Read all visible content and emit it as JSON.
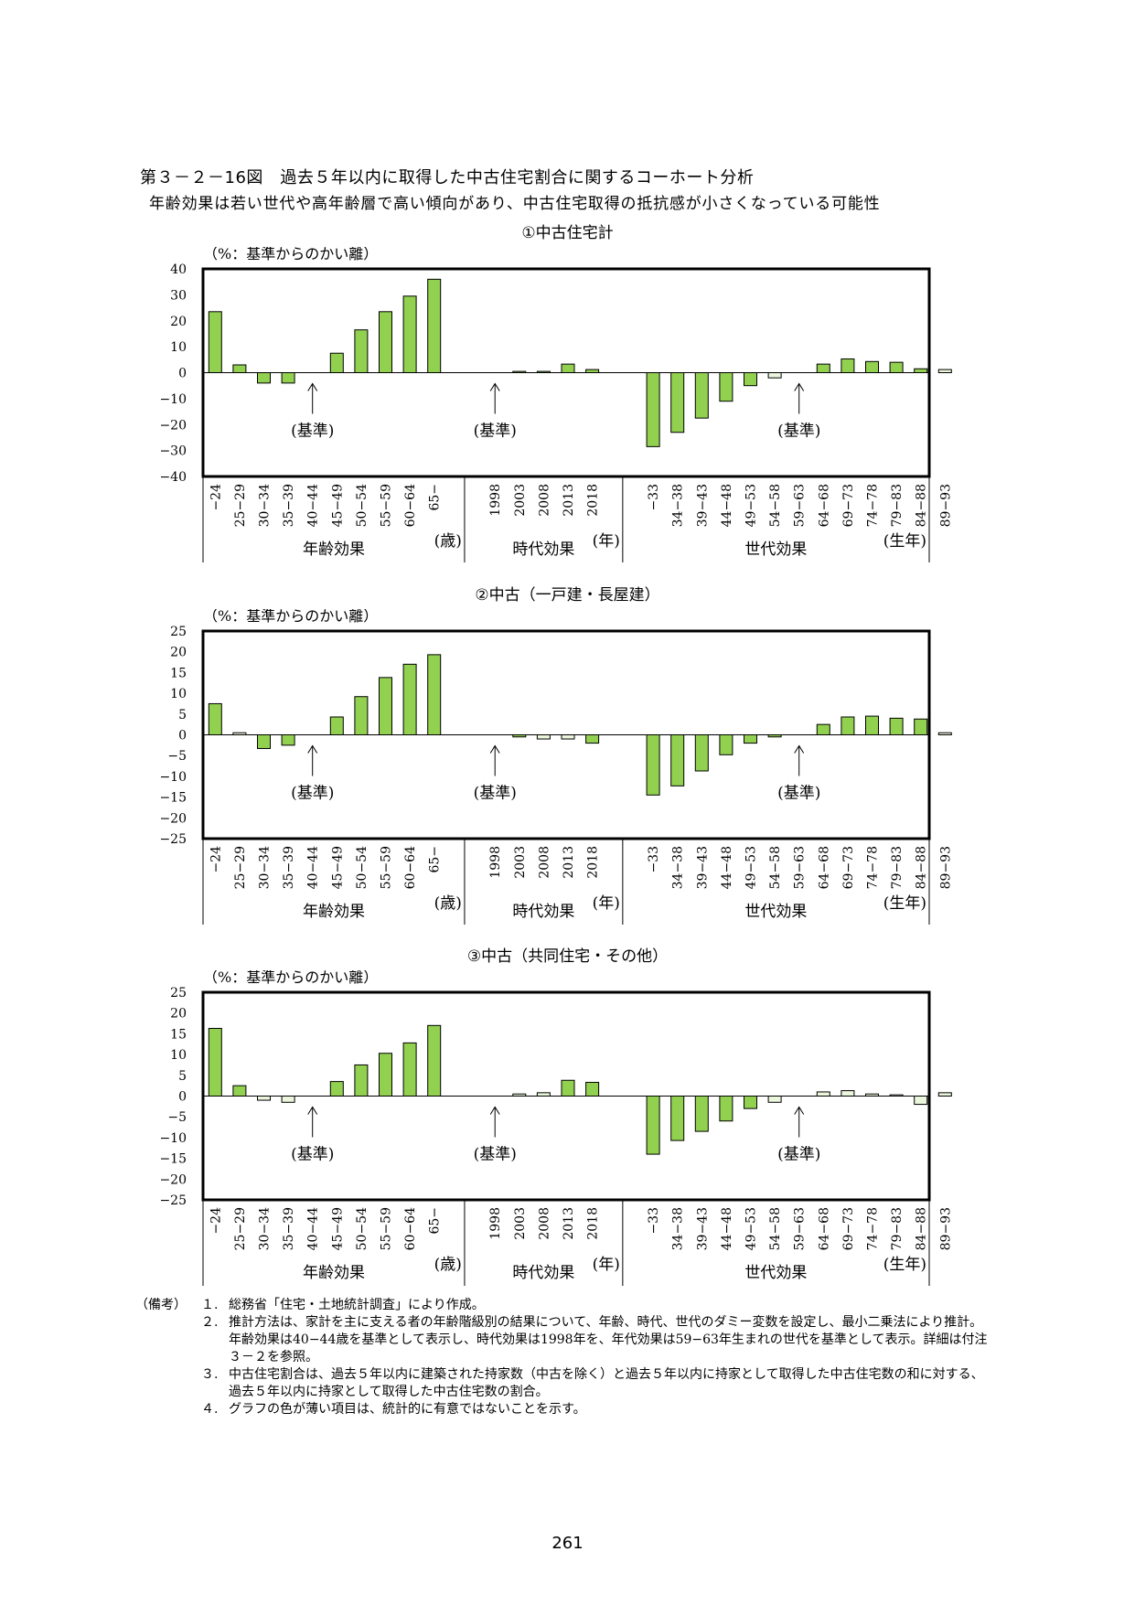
{
  "figure": {
    "title": "第３－２－16図　過去５年以内に取得した中古住宅割合に関するコーホート分析",
    "subtitle": "年齢効果は若い世代や高年齢層で高い傾向があり、中古住宅取得の抵抗感が小さくなっている可能性"
  },
  "shared": {
    "unit_label": "（%：基準からのかい離）",
    "reference_label": "(基準)",
    "groups": [
      "年齢効果",
      "時代効果",
      "世代効果"
    ],
    "group_units": [
      "(歳)",
      "(年)",
      "(生年)"
    ]
  },
  "colors": {
    "significant": "#92D050",
    "not_significant": "#EBF6DC",
    "stroke": "#000000"
  },
  "chart_data": [
    {
      "type": "bar",
      "title": "①中古住宅計",
      "ylabel": "（%：基準からのかい離）",
      "ylim": [
        -40,
        40
      ],
      "yticks": [
        40,
        30,
        20,
        10,
        0,
        -10,
        -20,
        -30,
        -40
      ],
      "ytick_labels": [
        "40",
        "30",
        "20",
        "10",
        "0",
        "−10",
        "−20",
        "−30",
        "−40"
      ],
      "categories": [
        "−24",
        "25−29",
        "30−34",
        "35−39",
        "40−44",
        "45−49",
        "50−54",
        "55−59",
        "60−64",
        "65−",
        "1998",
        "2003",
        "2008",
        "2013",
        "2018",
        "−33",
        "34−38",
        "39−43",
        "44−48",
        "49−53",
        "54−58",
        "59−63",
        "64−68",
        "69−73",
        "74−78",
        "79−83",
        "84−88",
        "89−93"
      ],
      "values": [
        23.5,
        3.0,
        -4.0,
        -4.0,
        0,
        7.5,
        16.5,
        23.5,
        29.5,
        36.0,
        0,
        0.5,
        0.5,
        3.3,
        1.2,
        -28.5,
        -23.0,
        -17.5,
        -11.0,
        -5.0,
        -2.0,
        0,
        3.3,
        5.3,
        4.3,
        4.0,
        1.5,
        1.2
      ],
      "significant": [
        true,
        true,
        true,
        true,
        true,
        true,
        true,
        true,
        true,
        true,
        true,
        true,
        true,
        true,
        true,
        true,
        true,
        true,
        true,
        true,
        false,
        true,
        true,
        true,
        true,
        true,
        true,
        false
      ],
      "reference_categories": [
        "40−44",
        "1998",
        "59−63"
      ]
    },
    {
      "type": "bar",
      "title": "②中古（一戸建・長屋建）",
      "ylabel": "（%：基準からのかい離）",
      "ylim": [
        -25,
        25
      ],
      "yticks": [
        25,
        20,
        15,
        10,
        5,
        0,
        -5,
        -10,
        -15,
        -20,
        -25
      ],
      "ytick_labels": [
        "25",
        "20",
        "15",
        "10",
        "5",
        "0",
        "−5",
        "−10",
        "−15",
        "−20",
        "−25"
      ],
      "categories": [
        "−24",
        "25−29",
        "30−34",
        "35−39",
        "40−44",
        "45−49",
        "50−54",
        "55−59",
        "60−64",
        "65−",
        "1998",
        "2003",
        "2008",
        "2013",
        "2018",
        "−33",
        "34−38",
        "39−43",
        "44−48",
        "49−53",
        "54−58",
        "59−63",
        "64−68",
        "69−73",
        "74−78",
        "79−83",
        "84−88",
        "89−93"
      ],
      "values": [
        7.5,
        0.5,
        -3.3,
        -2.5,
        0,
        4.3,
        9.2,
        13.8,
        17.0,
        19.3,
        0,
        -0.5,
        -1.0,
        -1.0,
        -2.0,
        -14.5,
        -12.3,
        -8.7,
        -4.8,
        -2.0,
        -0.5,
        0,
        2.5,
        4.3,
        4.5,
        4.0,
        3.8,
        0.5
      ],
      "significant": [
        true,
        false,
        true,
        true,
        true,
        true,
        true,
        true,
        true,
        true,
        true,
        true,
        false,
        false,
        true,
        true,
        true,
        true,
        true,
        true,
        true,
        true,
        true,
        true,
        true,
        true,
        true,
        false
      ],
      "reference_categories": [
        "40−44",
        "1998",
        "59−63"
      ]
    },
    {
      "type": "bar",
      "title": "③中古（共同住宅・その他）",
      "ylabel": "（%：基準からのかい離）",
      "ylim": [
        -25,
        25
      ],
      "yticks": [
        25,
        20,
        15,
        10,
        5,
        0,
        -5,
        -10,
        -15,
        -20,
        -25
      ],
      "ytick_labels": [
        "25",
        "20",
        "15",
        "10",
        "5",
        "0",
        "−5",
        "−10",
        "−15",
        "−20",
        "−25"
      ],
      "categories": [
        "−24",
        "25−29",
        "30−34",
        "35−39",
        "40−44",
        "45−49",
        "50−54",
        "55−59",
        "60−64",
        "65−",
        "1998",
        "2003",
        "2008",
        "2013",
        "2018",
        "−33",
        "34−38",
        "39−43",
        "44−48",
        "49−53",
        "54−58",
        "59−63",
        "64−68",
        "69−73",
        "74−78",
        "79−83",
        "84−88",
        "89−93"
      ],
      "values": [
        16.3,
        2.5,
        -1.0,
        -1.5,
        0,
        3.5,
        7.5,
        10.3,
        12.8,
        17.0,
        0,
        0.5,
        0.8,
        3.8,
        3.3,
        -14.0,
        -10.7,
        -8.5,
        -6.0,
        -3.0,
        -1.5,
        0,
        1.0,
        1.3,
        0.5,
        0.3,
        -2.0,
        0.8
      ],
      "significant": [
        true,
        true,
        false,
        false,
        true,
        true,
        true,
        true,
        true,
        true,
        true,
        false,
        false,
        true,
        true,
        true,
        true,
        true,
        true,
        true,
        false,
        true,
        false,
        false,
        false,
        false,
        false,
        false
      ],
      "reference_categories": [
        "40−44",
        "1998",
        "59−63"
      ]
    }
  ],
  "notes": {
    "label": "（備考）",
    "items": [
      {
        "num": "１.",
        "text": "総務省「住宅・土地統計調査」により作成。"
      },
      {
        "num": "２.",
        "text": "推計方法は、家計を主に支える者の年齢階級別の結果について、年齢、時代、世代のダミー変数を設定し、最小二乗法により推計。年齢効果は40−44歳を基準として表示し、時代効果は1998年を、年代効果は59−63年生まれの世代を基準として表示。詳細は付注３－２を参照。"
      },
      {
        "num": "３.",
        "text": "中古住宅割合は、過去５年以内に建築された持家数（中古を除く）と過去５年以内に持家として取得した中古住宅数の和に対する、過去５年以内に持家として取得した中古住宅数の割合。"
      },
      {
        "num": "４.",
        "text": "グラフの色が薄い項目は、統計的に有意ではないことを示す。"
      }
    ]
  },
  "page_number": "261"
}
